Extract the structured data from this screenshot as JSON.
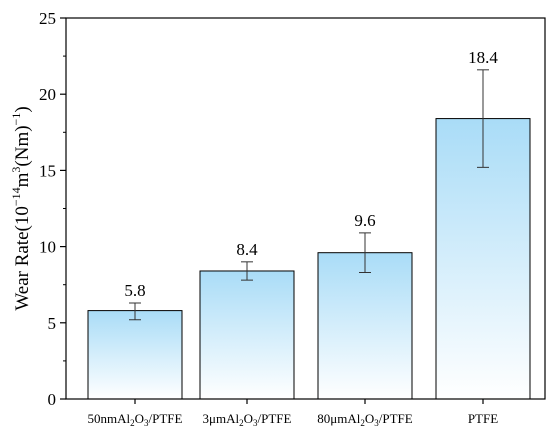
{
  "chart_data": {
    "type": "bar",
    "categories": [
      {
        "base": "50nmAl",
        "sub1": "2",
        "mid": "O",
        "sub2": "3",
        "tail": "/PTFE"
      },
      {
        "base": "3μmAl",
        "sub1": "2",
        "mid": "O",
        "sub2": "3",
        "tail": "/PTFE"
      },
      {
        "base": "80μmAl",
        "sub1": "2",
        "mid": "O",
        "sub2": "3",
        "tail": "/PTFE"
      },
      {
        "base": "PTFE",
        "sub1": "",
        "mid": "",
        "sub2": "",
        "tail": ""
      }
    ],
    "values": [
      5.8,
      8.4,
      9.6,
      18.4
    ],
    "value_labels": [
      "5.8",
      "8.4",
      "9.6",
      "18.4"
    ],
    "error_low": [
      5.2,
      7.8,
      8.3,
      15.2
    ],
    "error_high": [
      6.3,
      9.0,
      10.9,
      21.6
    ],
    "ylim": [
      0,
      25
    ],
    "yticks": [
      0,
      5,
      10,
      15,
      20,
      25
    ],
    "ylabel": {
      "prefix": "Wear Rate(10",
      "exp1": "−14",
      "mid": "m",
      "exp2": "3",
      "mid2": "(Nm)",
      "exp3": "−1",
      "suffix": ")"
    },
    "grid": false,
    "colors": {
      "bar_top": "#a9dcf7",
      "bar_bottom": "#ffffff",
      "bar_edge": "#000000",
      "axis": "#000000"
    }
  }
}
